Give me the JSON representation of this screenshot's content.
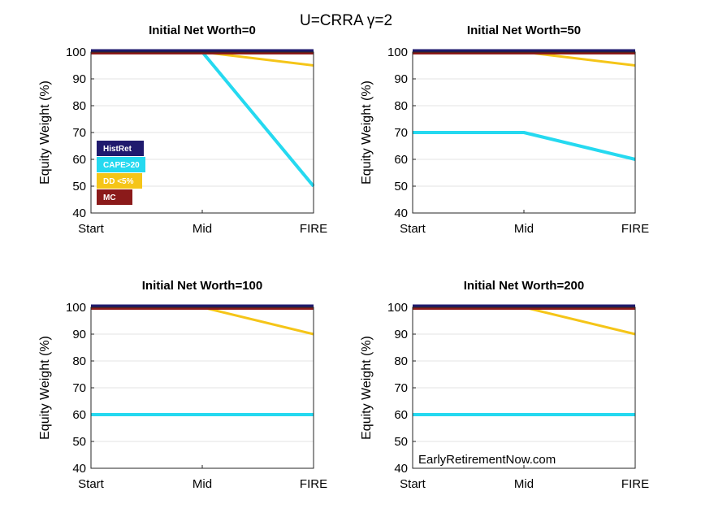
{
  "figure_title": "U=CRRA γ=2",
  "watermark": "EarlyRetirementNow.com",
  "chart_data": [
    {
      "type": "line",
      "title": "Initial Net Worth=0",
      "ylabel": "Equity Weight (%)",
      "xlabel": "",
      "categories": [
        "Start",
        "Mid",
        "FIRE"
      ],
      "ylim": [
        40,
        100
      ],
      "yticks": [
        40,
        50,
        60,
        70,
        80,
        90,
        100
      ],
      "grid": true,
      "legend": "bottom-left",
      "series": [
        {
          "name": "HistRet",
          "color": "#1f1a6e",
          "values": [
            100,
            100,
            100
          ]
        },
        {
          "name": "CAPE>20",
          "color": "#25d9f0",
          "values": [
            100,
            100,
            50
          ]
        },
        {
          "name": "DD <5%",
          "color": "#f5c518",
          "values": [
            100,
            100,
            95
          ]
        },
        {
          "name": "MC",
          "color": "#8b1a1a",
          "values": [
            100,
            100,
            100
          ]
        }
      ]
    },
    {
      "type": "line",
      "title": "Initial Net Worth=50",
      "ylabel": "Equity Weight (%)",
      "xlabel": "",
      "categories": [
        "Start",
        "Mid",
        "FIRE"
      ],
      "ylim": [
        40,
        100
      ],
      "yticks": [
        40,
        50,
        60,
        70,
        80,
        90,
        100
      ],
      "grid": true,
      "series": [
        {
          "name": "HistRet",
          "color": "#1f1a6e",
          "values": [
            100,
            100,
            100
          ]
        },
        {
          "name": "CAPE>20",
          "color": "#25d9f0",
          "values": [
            70,
            70,
            60
          ]
        },
        {
          "name": "DD <5%",
          "color": "#f5c518",
          "values": [
            100,
            100,
            95
          ]
        },
        {
          "name": "MC",
          "color": "#8b1a1a",
          "values": [
            100,
            100,
            100
          ]
        }
      ]
    },
    {
      "type": "line",
      "title": "Initial Net Worth=100",
      "ylabel": "Equity Weight (%)",
      "xlabel": "",
      "categories": [
        "Start",
        "Mid",
        "FIRE"
      ],
      "ylim": [
        40,
        100
      ],
      "yticks": [
        40,
        50,
        60,
        70,
        80,
        90,
        100
      ],
      "grid": true,
      "series": [
        {
          "name": "HistRet",
          "color": "#1f1a6e",
          "values": [
            100,
            100,
            100
          ]
        },
        {
          "name": "CAPE>20",
          "color": "#25d9f0",
          "values": [
            60,
            60,
            60
          ]
        },
        {
          "name": "DD <5%",
          "color": "#f5c518",
          "values": [
            100,
            100,
            90
          ]
        },
        {
          "name": "MC",
          "color": "#8b1a1a",
          "values": [
            100,
            100,
            100
          ]
        }
      ]
    },
    {
      "type": "line",
      "title": "Initial Net Worth=200",
      "ylabel": "Equity Weight (%)",
      "xlabel": "",
      "categories": [
        "Start",
        "Mid",
        "FIRE"
      ],
      "ylim": [
        40,
        100
      ],
      "yticks": [
        40,
        50,
        60,
        70,
        80,
        90,
        100
      ],
      "grid": true,
      "series": [
        {
          "name": "HistRet",
          "color": "#1f1a6e",
          "values": [
            100,
            100,
            100
          ]
        },
        {
          "name": "CAPE>20",
          "color": "#25d9f0",
          "values": [
            60,
            60,
            60
          ]
        },
        {
          "name": "DD <5%",
          "color": "#f5c518",
          "values": [
            100,
            100,
            90
          ]
        },
        {
          "name": "MC",
          "color": "#8b1a1a",
          "values": [
            100,
            100,
            100
          ]
        }
      ]
    }
  ]
}
